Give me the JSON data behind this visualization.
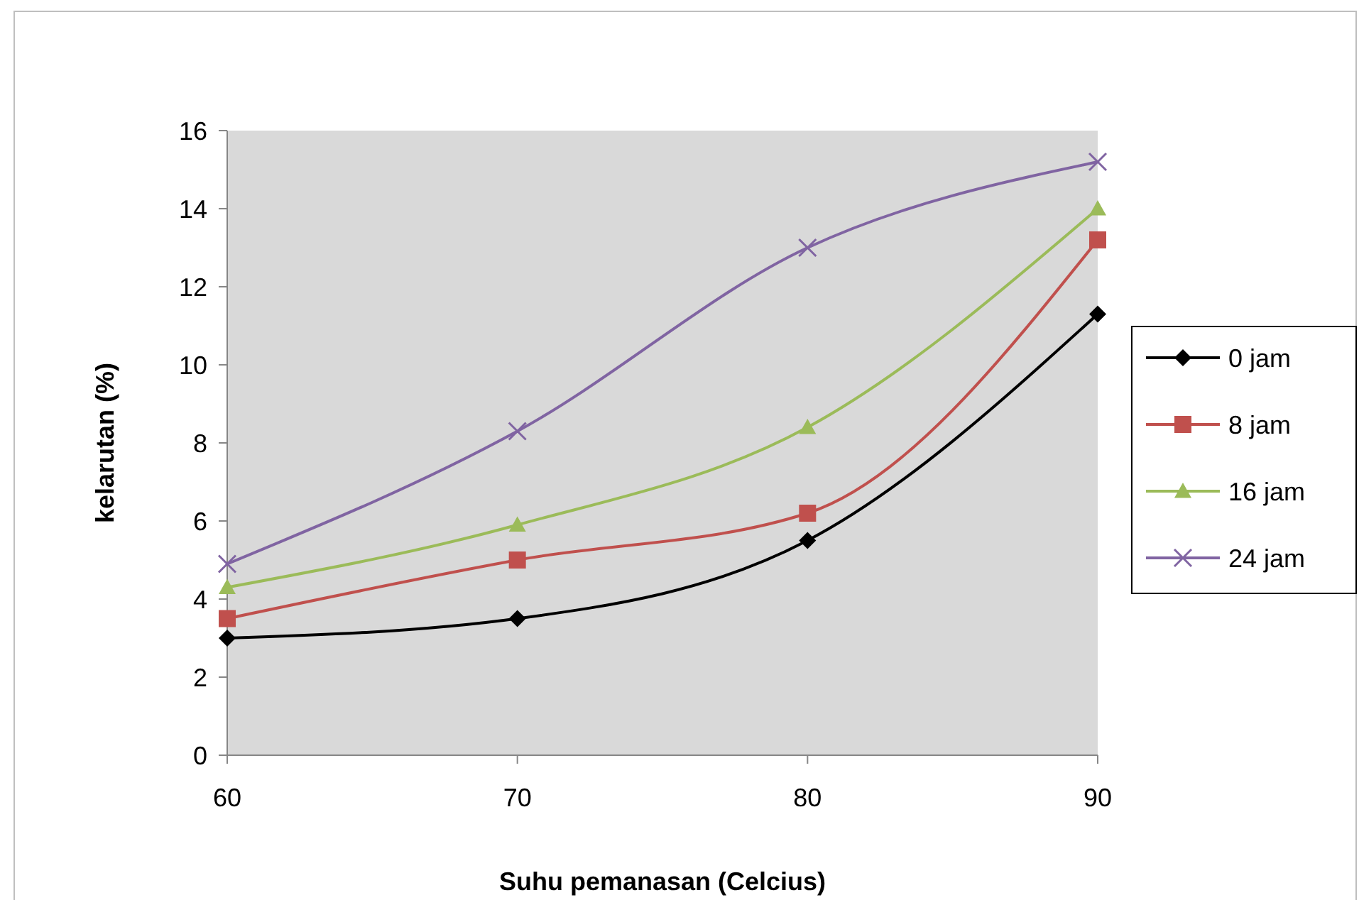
{
  "chart_data": {
    "type": "line",
    "xlabel": "Suhu pemanasan (Celcius)",
    "ylabel": "kelarutan (%)",
    "x": [
      60,
      70,
      80,
      90
    ],
    "xlim": [
      60,
      90
    ],
    "xticks": [
      60,
      70,
      80,
      90
    ],
    "ylim": [
      0,
      16
    ],
    "yticks": [
      0,
      2,
      4,
      6,
      8,
      10,
      12,
      14,
      16
    ],
    "grid": false,
    "legend": "right",
    "series": [
      {
        "name": "0 jam",
        "color": "#000000",
        "marker": "diamond",
        "values": [
          3.0,
          3.5,
          5.5,
          11.3
        ]
      },
      {
        "name": "8 jam",
        "color": "#c0504d",
        "marker": "square",
        "values": [
          3.5,
          5.0,
          6.2,
          13.2
        ]
      },
      {
        "name": "16 jam",
        "color": "#9bbb59",
        "marker": "triangle",
        "values": [
          4.3,
          5.9,
          8.4,
          14.0
        ]
      },
      {
        "name": "24 jam",
        "color": "#8064a2",
        "marker": "cross",
        "values": [
          4.9,
          8.3,
          13.0,
          15.2
        ]
      }
    ]
  }
}
